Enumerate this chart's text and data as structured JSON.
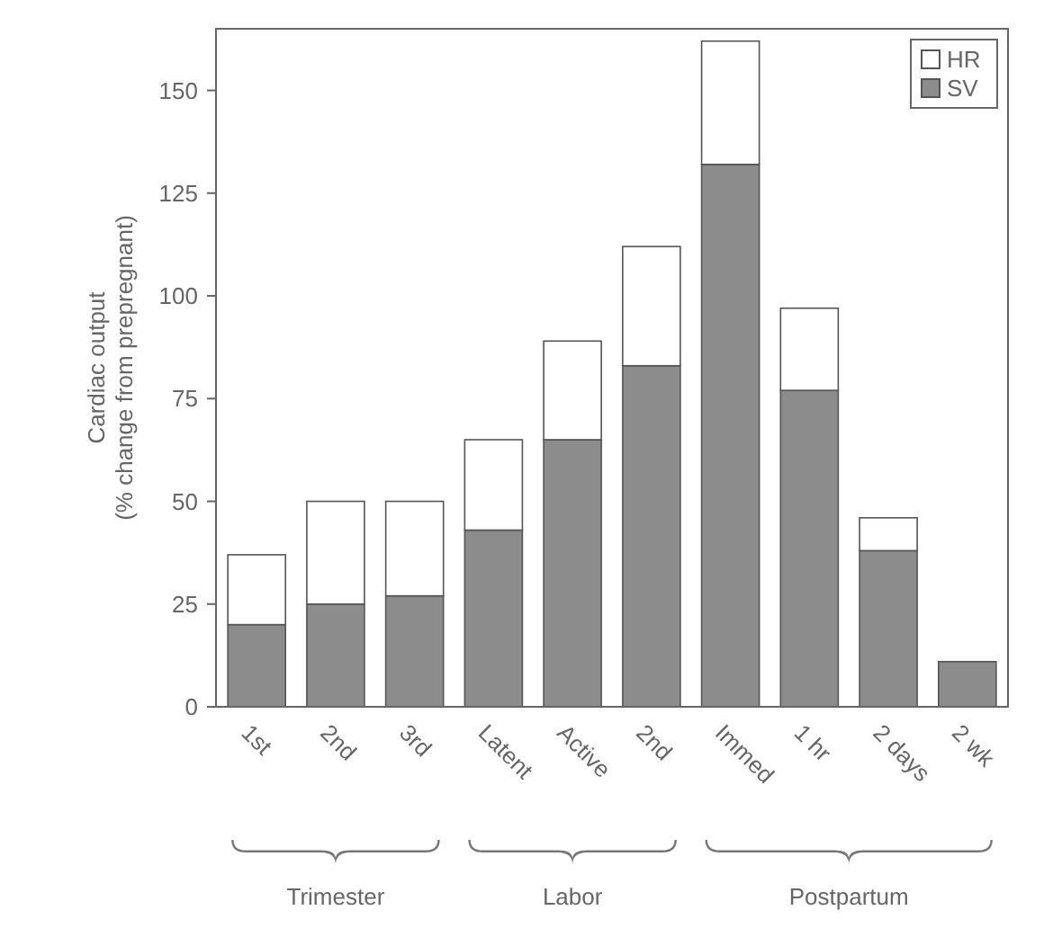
{
  "chart_data": {
    "type": "bar",
    "stacked": true,
    "categories": [
      "1st",
      "2nd",
      "3rd",
      "Latent",
      "Active",
      "2nd",
      "Immed",
      "1 hr",
      "2 days",
      "2 wk"
    ],
    "series": [
      {
        "name": "SV",
        "color": "#8c8c8c",
        "values": [
          20,
          25,
          27,
          43,
          65,
          83,
          132,
          77,
          38,
          11
        ]
      },
      {
        "name": "HR",
        "color": "#ffffff",
        "values": [
          17,
          25,
          23,
          22,
          24,
          29,
          30,
          20,
          8,
          0
        ]
      }
    ],
    "ylabel": "Cardiac output\n(% change from prepregnant)",
    "ylim": [
      0,
      165
    ],
    "yticks": [
      0,
      25,
      50,
      75,
      100,
      125,
      150
    ],
    "legend": "top right",
    "annotations": [
      "Trimester",
      "Labor",
      "Postpartum"
    ]
  }
}
